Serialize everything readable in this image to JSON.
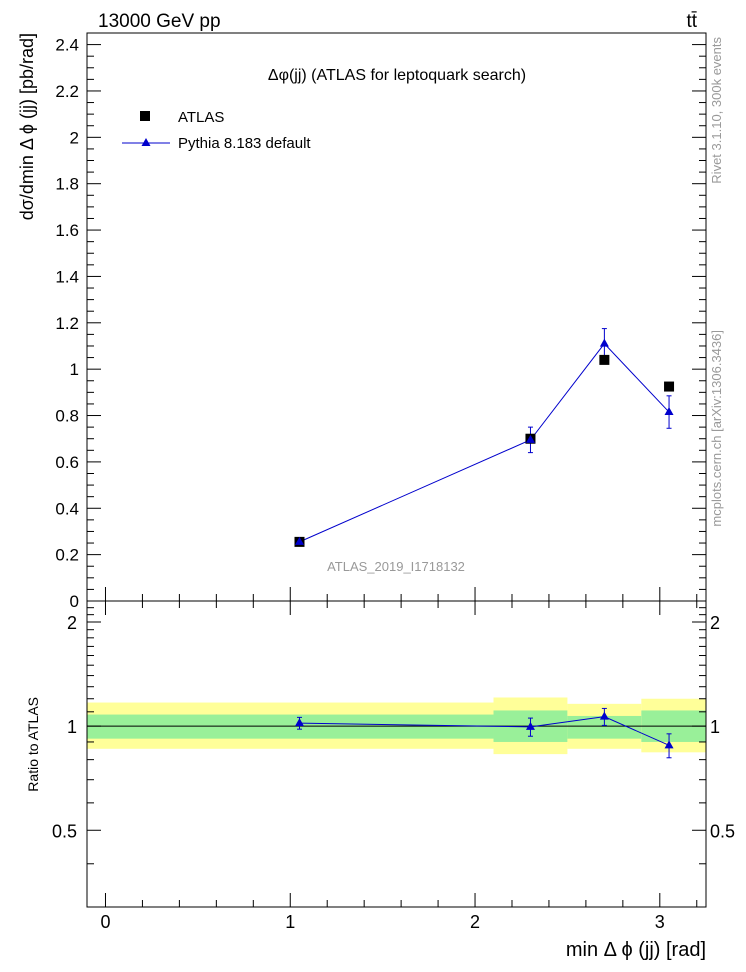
{
  "header": {
    "left_text": "13000 GeV pp",
    "right_text": "tt̄"
  },
  "side_text": {
    "rivet": "Rivet 3.1.10,  300k events",
    "mcplots": "mcplots.cern.ch [arXiv:1306.3436]"
  },
  "chart_data": [
    {
      "type": "scatter",
      "title": "Δφ(jj) (ATLAS for leptoquark search)",
      "watermark": "ATLAS_2019_I1718132",
      "ylabel": "dσ/dmin Δ ϕ (jj) [pb/rad]",
      "xlim": [
        -0.1,
        3.25
      ],
      "ylim": [
        0,
        2.45
      ],
      "y_ticks": [
        0,
        0.2,
        0.4,
        0.6,
        0.8,
        1,
        1.2,
        1.4,
        1.6,
        1.8,
        2,
        2.2,
        2.4
      ],
      "y_tick_labels": [
        "0",
        "0.2",
        "0.4",
        "0.6",
        "0.8",
        "1",
        "1.2",
        "1.4",
        "1.6",
        "1.8",
        "2",
        "2.2",
        "2.4"
      ],
      "legend": {
        "placement": "top-left"
      },
      "series": [
        {
          "name": "ATLAS",
          "marker": "square",
          "color": "#000000",
          "x": [
            1.05,
            2.3,
            2.7,
            3.05
          ],
          "y": [
            0.255,
            0.7,
            1.04,
            0.925
          ]
        },
        {
          "name": "Pythia 8.183 default",
          "marker": "triangle",
          "color": "#0000cc",
          "x": [
            1.05,
            2.3,
            2.7,
            3.05
          ],
          "y": [
            0.255,
            0.695,
            1.11,
            0.815
          ],
          "yerr": [
            0.01,
            0.055,
            0.065,
            0.07
          ]
        }
      ]
    },
    {
      "type": "scatter",
      "xlabel": "min Δ ϕ (jj) [rad]",
      "ylabel": "Ratio to ATLAS",
      "xlim": [
        -0.1,
        3.25
      ],
      "ylim": [
        0.3,
        2.3
      ],
      "log_y": true,
      "x_ticks": [
        0,
        1,
        2,
        3
      ],
      "x_tick_labels": [
        "0",
        "1",
        "2",
        "3"
      ],
      "y_ticks": [
        0.5,
        1,
        2
      ],
      "y_tick_labels": [
        "0.5",
        "1",
        "2"
      ],
      "bands": {
        "edges": [
          -0.1,
          2.1,
          2.5,
          2.9,
          3.25
        ],
        "inner": [
          [
            0.92,
            1.08
          ],
          [
            0.9,
            1.11
          ],
          [
            0.92,
            1.07
          ],
          [
            0.9,
            1.11
          ]
        ],
        "outer": [
          [
            0.86,
            1.17
          ],
          [
            0.83,
            1.21
          ],
          [
            0.86,
            1.16
          ],
          [
            0.84,
            1.2
          ]
        ],
        "inner_color": "#99f099",
        "outer_color": "#ffff99"
      },
      "series": [
        {
          "name": "Pythia 8.183 default",
          "color": "#0000cc",
          "x": [
            1.05,
            2.3,
            2.7,
            3.05
          ],
          "y": [
            1.02,
            0.995,
            1.065,
            0.88
          ],
          "yerr": [
            0.04,
            0.06,
            0.06,
            0.07
          ]
        }
      ]
    }
  ]
}
